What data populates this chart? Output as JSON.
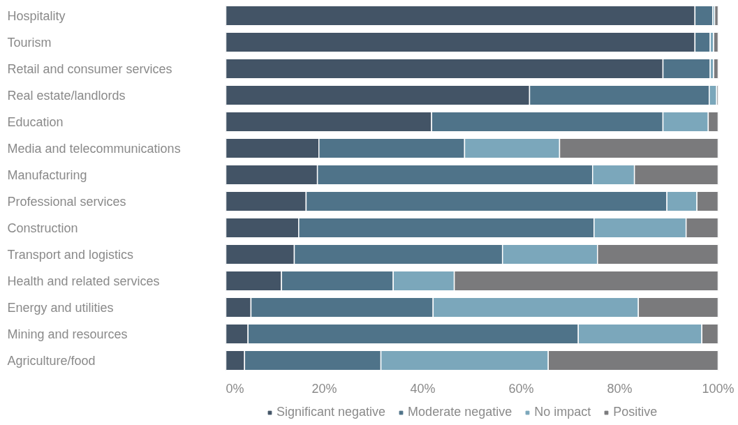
{
  "chart_data": {
    "type": "bar",
    "orientation": "horizontal",
    "stacked": true,
    "categories": [
      "Hospitality",
      "Tourism",
      "Retail and consumer services",
      "Real estate/landlords",
      "Education",
      "Media and telecommunications",
      "Manufacturing",
      "Professional services",
      "Construction",
      "Transport and logistics",
      "Health and related services",
      "Energy and utilities",
      "Mining and resources",
      "Agriculture/food"
    ],
    "series": [
      {
        "name": "Significant negative",
        "color": "#435466",
        "values": [
          95.3,
          95.3,
          88.8,
          61.7,
          41.8,
          18.9,
          18.6,
          16.3,
          14.8,
          13.9,
          11.3,
          5.1,
          4.5,
          3.8
        ]
      },
      {
        "name": "Moderate negative",
        "color": "#4f7389",
        "values": [
          3.6,
          3.1,
          9.6,
          36.5,
          47.0,
          29.6,
          55.9,
          73.3,
          60.0,
          42.3,
          22.7,
          37.0,
          67.1,
          27.7
        ]
      },
      {
        "name": "No impact",
        "color": "#7ba7bb",
        "values": [
          0.4,
          0.7,
          0.7,
          1.5,
          9.2,
          19.3,
          8.5,
          6.1,
          18.7,
          19.3,
          12.4,
          41.7,
          25.1,
          34.0
        ]
      },
      {
        "name": "Positive",
        "color": "#7a7a7c",
        "values": [
          0.7,
          0.9,
          0.9,
          0.3,
          2.0,
          32.2,
          17.0,
          4.3,
          6.5,
          24.5,
          53.6,
          16.2,
          3.3,
          34.5
        ]
      }
    ],
    "xlim": [
      0,
      100
    ],
    "xticks": [
      {
        "value": 0,
        "label": "0%"
      },
      {
        "value": 20,
        "label": "20%"
      },
      {
        "value": 40,
        "label": "40%"
      },
      {
        "value": 60,
        "label": "60%"
      },
      {
        "value": 80,
        "label": "80%"
      },
      {
        "value": 100,
        "label": "100%"
      }
    ],
    "grid": false,
    "legend": "bottom"
  }
}
